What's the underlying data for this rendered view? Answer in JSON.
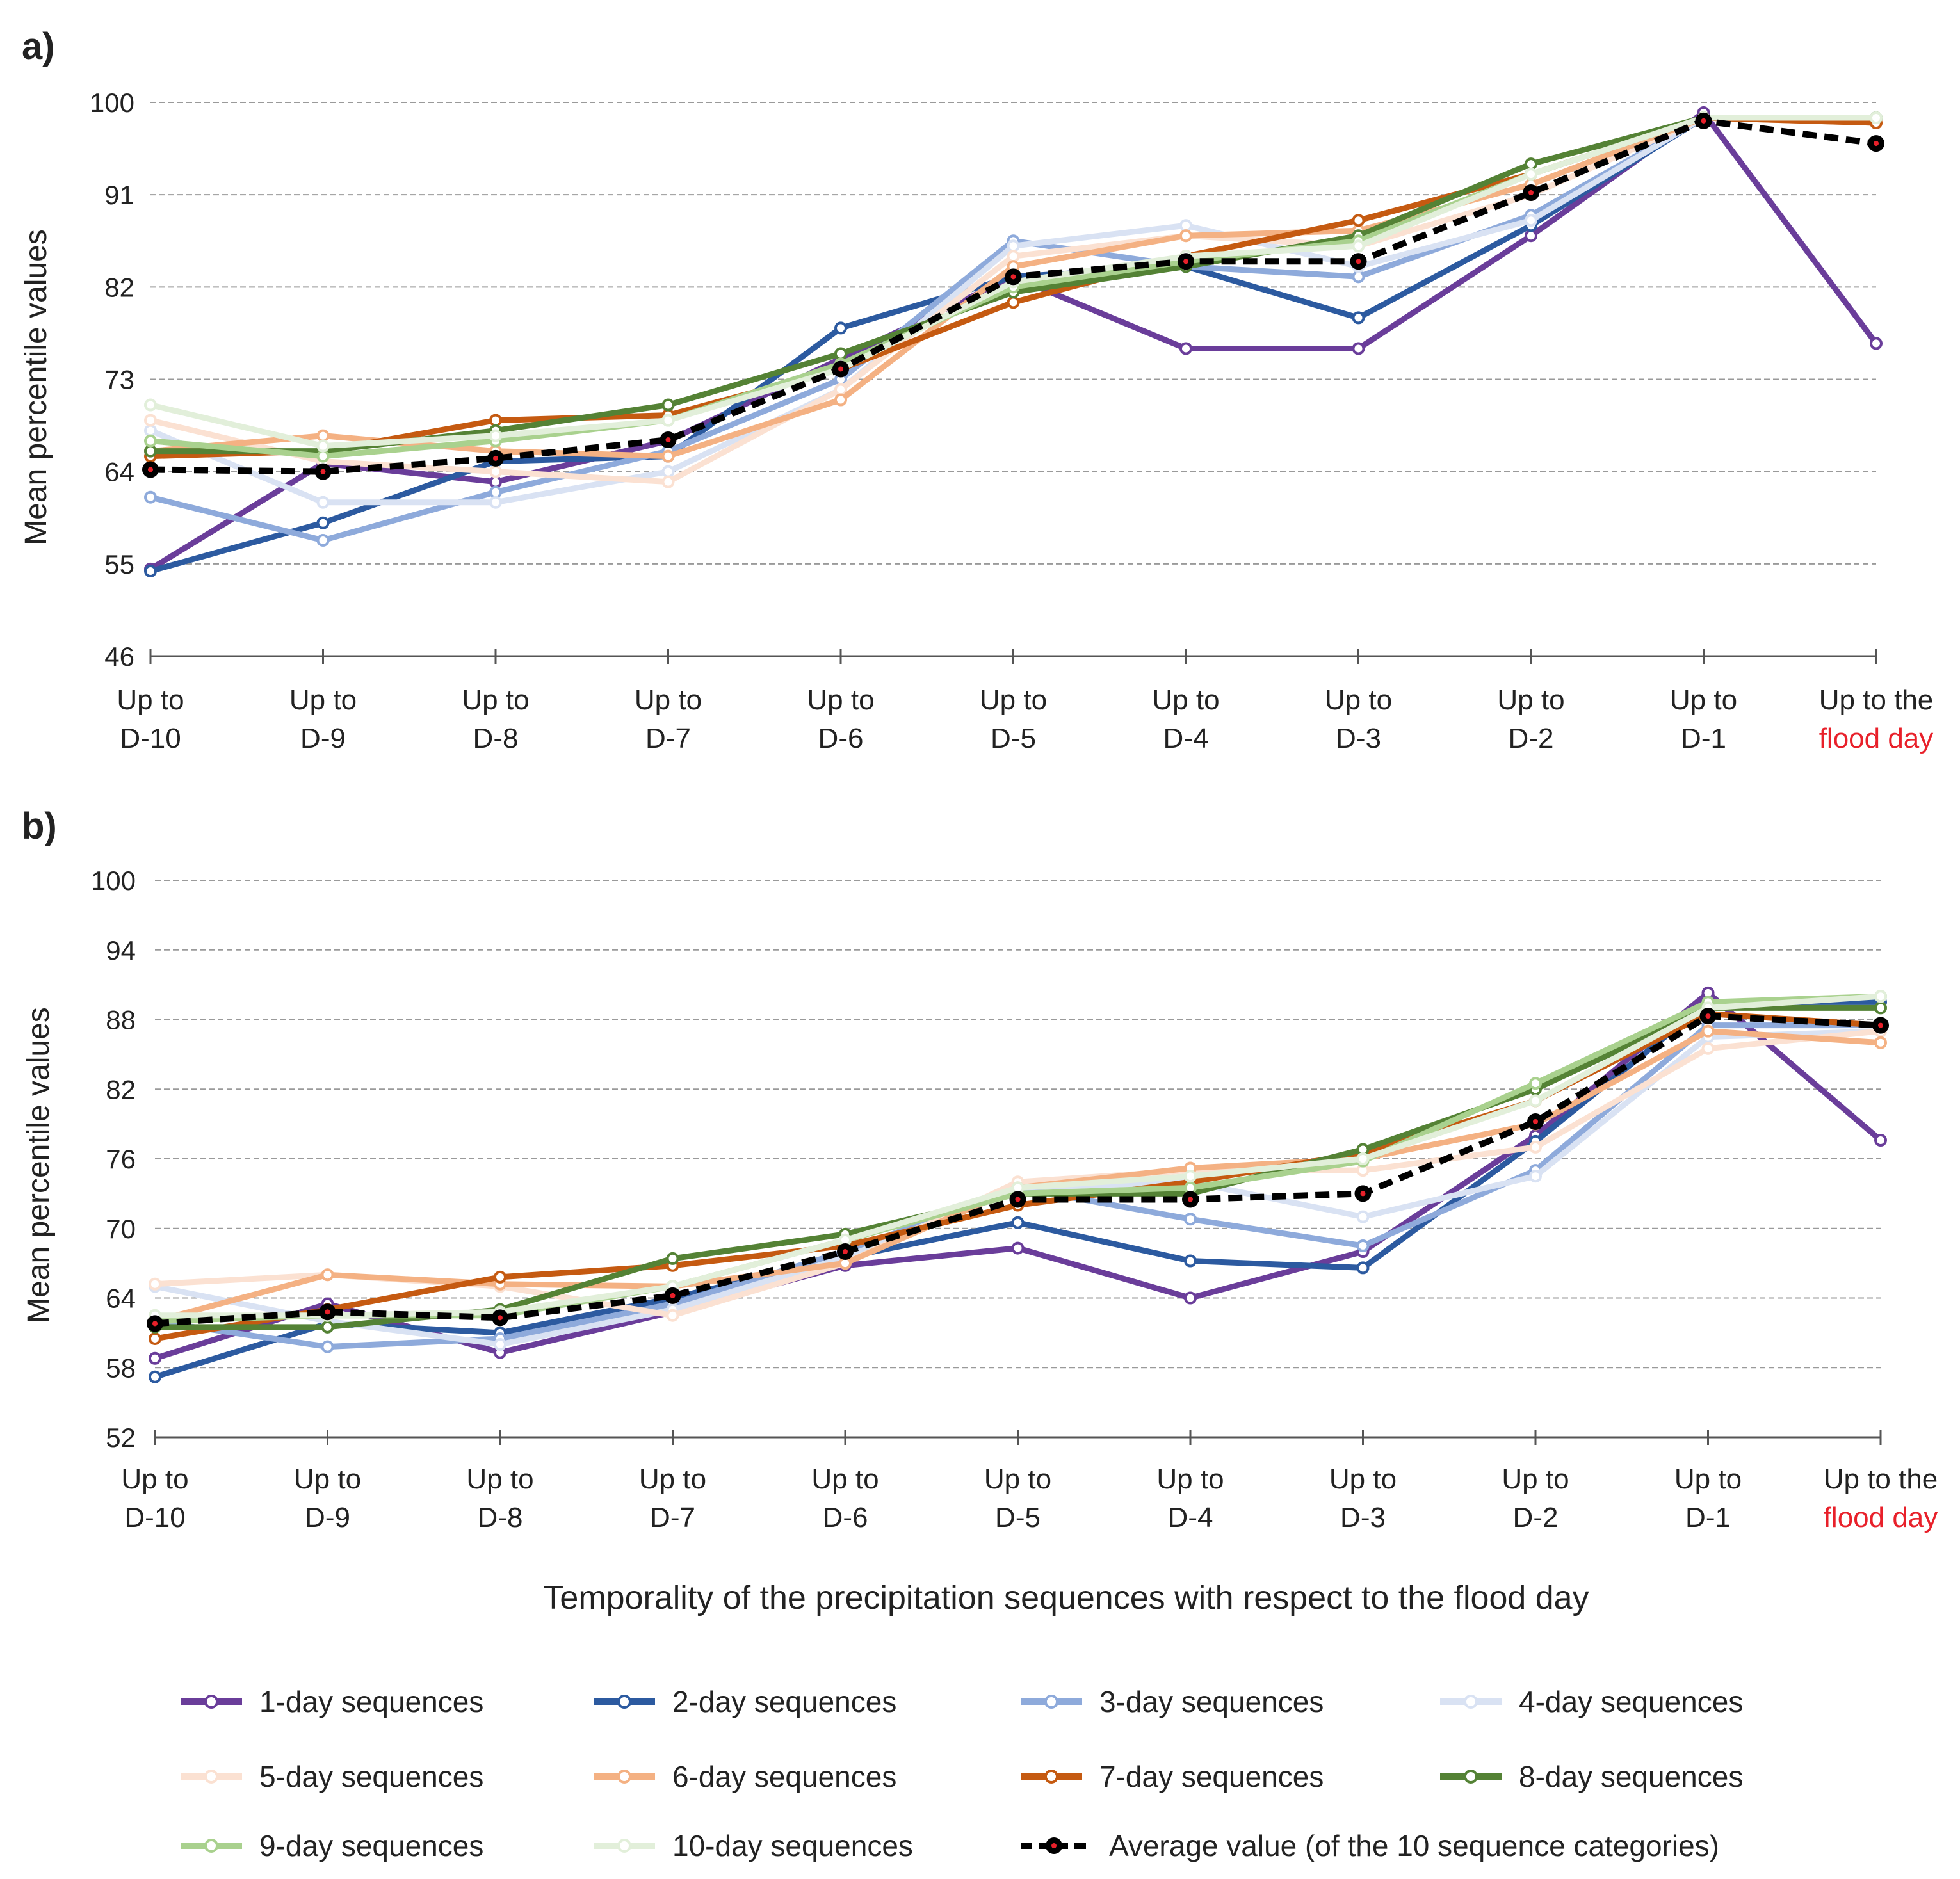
{
  "xlabel": "Temporality of the precipitation sequences with respect to the flood day",
  "categories": [
    [
      "Up to",
      "D-10"
    ],
    [
      "Up to",
      "D-9"
    ],
    [
      "Up to",
      "D-8"
    ],
    [
      "Up to",
      "D-7"
    ],
    [
      "Up to",
      "D-6"
    ],
    [
      "Up to",
      "D-5"
    ],
    [
      "Up to",
      "D-4"
    ],
    [
      "Up to",
      "D-3"
    ],
    [
      "Up to",
      "D-2"
    ],
    [
      "Up to",
      "D-1"
    ],
    [
      "Up to the",
      "flood day"
    ]
  ],
  "highlight_color": "#e8202a",
  "series_styles": [
    {
      "name": "1-day sequences",
      "color": "#6a3d9a"
    },
    {
      "name": "2-day sequences",
      "color": "#2c5aa0"
    },
    {
      "name": "3-day sequences",
      "color": "#8eaadb"
    },
    {
      "name": "4-day sequences",
      "color": "#d9e2f3"
    },
    {
      "name": "5-day sequences",
      "color": "#fbe1d2"
    },
    {
      "name": "6-day sequences",
      "color": "#f4b183"
    },
    {
      "name": "7-day sequences",
      "color": "#c55a11"
    },
    {
      "name": "8-day sequences",
      "color": "#548235"
    },
    {
      "name": "9-day sequences",
      "color": "#a9d18e"
    },
    {
      "name": "10-day sequences",
      "color": "#e2efda"
    }
  ],
  "average_label": "Average value (of the 10 sequence categories)",
  "chart_data": [
    {
      "panel": "a)",
      "type": "line",
      "ylabel": "Mean percentile values",
      "ylim": [
        46,
        100
      ],
      "yticks": [
        46,
        55,
        64,
        73,
        82,
        91,
        100
      ],
      "series": [
        {
          "name": "1-day sequences",
          "values": [
            54.5,
            64.8,
            63.0,
            67.0,
            75.0,
            83.0,
            76.0,
            76.0,
            87.0,
            99.0,
            76.5
          ]
        },
        {
          "name": "2-day sequences",
          "values": [
            54.3,
            59.0,
            65.0,
            65.5,
            78.0,
            83.0,
            84.0,
            79.0,
            88.0,
            98.5,
            98.5
          ]
        },
        {
          "name": "3-day sequences",
          "values": [
            61.5,
            57.3,
            62.0,
            66.0,
            73.0,
            86.5,
            84.0,
            83.0,
            89.0,
            98.5,
            98.5
          ]
        },
        {
          "name": "4-day sequences",
          "values": [
            68.0,
            61.0,
            61.0,
            64.0,
            72.0,
            86.0,
            88.0,
            84.0,
            88.5,
            98.5,
            98.5
          ]
        },
        {
          "name": "5-day sequences",
          "values": [
            69.0,
            65.0,
            64.0,
            63.0,
            72.0,
            85.0,
            87.0,
            86.0,
            91.0,
            98.5,
            98.5
          ]
        },
        {
          "name": "6-day sequences",
          "values": [
            66.0,
            67.5,
            66.0,
            65.5,
            71.0,
            84.0,
            87.0,
            87.5,
            92.0,
            98.5,
            98.0
          ]
        },
        {
          "name": "7-day sequences",
          "values": [
            65.5,
            66.0,
            69.0,
            69.5,
            74.0,
            80.5,
            85.0,
            88.5,
            93.0,
            98.5,
            98.0
          ]
        },
        {
          "name": "8-day sequences",
          "values": [
            66.0,
            66.0,
            68.0,
            70.5,
            75.5,
            81.5,
            84.0,
            87.0,
            94.0,
            98.5,
            98.5
          ]
        },
        {
          "name": "9-day sequences",
          "values": [
            67.0,
            65.5,
            67.0,
            69.0,
            74.5,
            82.0,
            84.5,
            86.5,
            93.0,
            98.5,
            98.5
          ]
        },
        {
          "name": "10-day sequences",
          "values": [
            70.5,
            66.5,
            67.5,
            69.0,
            74.0,
            82.5,
            85.0,
            86.0,
            93.0,
            98.5,
            98.5
          ]
        }
      ],
      "average": [
        64.2,
        64.0,
        65.3,
        67.1,
        74.0,
        83.0,
        84.5,
        84.5,
        91.2,
        98.2,
        96.0
      ]
    },
    {
      "panel": "b)",
      "type": "line",
      "ylabel": "Mean percentile values",
      "ylim": [
        52,
        100
      ],
      "yticks": [
        52,
        58,
        64,
        70,
        76,
        82,
        88,
        94,
        100
      ],
      "series": [
        {
          "name": "1-day sequences",
          "values": [
            58.8,
            63.5,
            59.3,
            62.8,
            66.8,
            68.3,
            64.0,
            68.0,
            78.0,
            90.3,
            77.6
          ]
        },
        {
          "name": "2-day sequences",
          "values": [
            57.2,
            61.8,
            61.0,
            64.0,
            67.5,
            70.5,
            67.2,
            66.6,
            77.5,
            89.5,
            89.5
          ]
        },
        {
          "name": "3-day sequences",
          "values": [
            62.0,
            59.8,
            60.5,
            63.5,
            68.0,
            73.5,
            70.8,
            68.5,
            75.0,
            87.5,
            87.5
          ]
        },
        {
          "name": "4-day sequences",
          "values": [
            65.0,
            62.0,
            60.0,
            63.0,
            67.5,
            73.5,
            74.0,
            71.0,
            74.5,
            86.5,
            87.0
          ]
        },
        {
          "name": "5-day sequences",
          "values": [
            65.2,
            66.0,
            65.0,
            62.5,
            67.0,
            74.0,
            75.0,
            75.0,
            77.0,
            85.5,
            87.0
          ]
        },
        {
          "name": "6-day sequences",
          "values": [
            62.0,
            66.0,
            65.2,
            65.0,
            67.0,
            73.5,
            75.2,
            76.0,
            79.0,
            87.0,
            86.0
          ]
        },
        {
          "name": "7-day sequences",
          "values": [
            60.5,
            63.0,
            65.8,
            66.8,
            68.5,
            72.0,
            74.0,
            76.5,
            81.0,
            88.5,
            87.5
          ]
        },
        {
          "name": "8-day sequences",
          "values": [
            61.5,
            61.5,
            63.0,
            67.4,
            69.5,
            73.0,
            73.0,
            76.8,
            82.0,
            89.0,
            89.0
          ]
        },
        {
          "name": "9-day sequences",
          "values": [
            62.0,
            62.5,
            62.5,
            65.0,
            69.0,
            73.0,
            73.5,
            75.8,
            82.5,
            89.5,
            90.0
          ]
        },
        {
          "name": "10-day sequences",
          "values": [
            62.5,
            62.5,
            62.8,
            65.0,
            69.0,
            73.5,
            74.5,
            76.0,
            81.0,
            89.0,
            90.0
          ]
        }
      ],
      "average": [
        61.8,
        62.8,
        62.3,
        64.2,
        68.0,
        72.5,
        72.5,
        73.0,
        79.2,
        88.3,
        87.5
      ]
    }
  ]
}
